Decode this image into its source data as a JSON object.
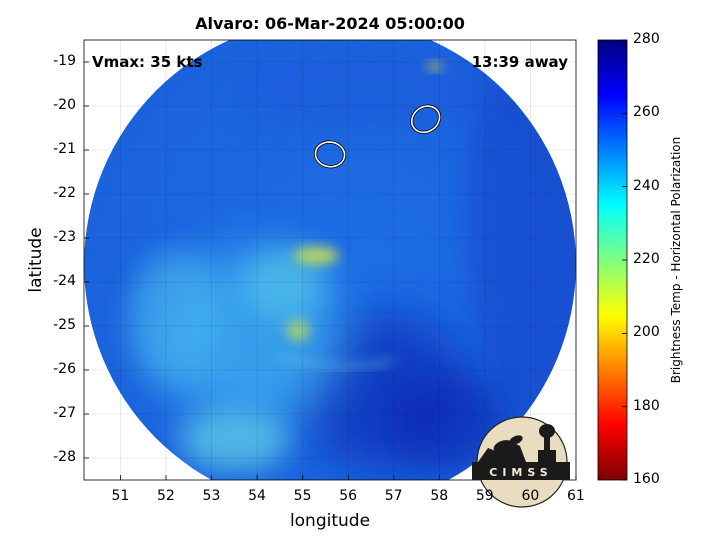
{
  "chart_data": {
    "type": "heatmap",
    "title": "Alvaro: 06-Mar-2024 05:00:00",
    "xlabel": "longitude",
    "ylabel": "latitude",
    "xlim": [
      50.2,
      61
    ],
    "ylim": [
      -28.5,
      -18.5
    ],
    "xticks": [
      51,
      52,
      53,
      54,
      55,
      56,
      57,
      58,
      59,
      60,
      61
    ],
    "yticks": [
      -19,
      -20,
      -21,
      -22,
      -23,
      -24,
      -25,
      -26,
      -27,
      -28
    ],
    "grid": true,
    "annotations": {
      "vmax": "Vmax: 35 kts",
      "distance": "13:39 away"
    },
    "colorbar": {
      "label": "Brightness Temp - Horizontal Polarization",
      "range": [
        160,
        280
      ],
      "ticks": [
        280,
        260,
        240,
        220,
        200,
        180,
        160
      ],
      "colormap": "jet"
    },
    "swath": {
      "center_lon": 55.6,
      "center_lat": -23.6,
      "radius_deg": 5.4
    },
    "features": {
      "warm_band_lon": 55.3,
      "warm_band_lat": -23.4,
      "cold_core_lon": 56.8,
      "cold_core_lat": -26.5,
      "white_contours": [
        {
          "lon": 55.6,
          "lat": -21.1
        },
        {
          "lon": 57.7,
          "lat": -20.3
        }
      ]
    }
  },
  "logo": {
    "name": "cimss-logo",
    "text": "CIMSS"
  }
}
